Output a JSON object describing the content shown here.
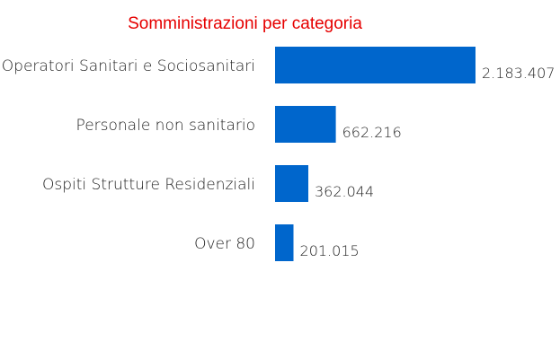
{
  "chart_data": {
    "type": "bar",
    "orientation": "horizontal",
    "title": "Somministrazioni per categoria",
    "categories": [
      "Operatori Sanitari e Sociosanitari",
      "Personale non sanitario",
      "Ospiti Strutture Residenziali",
      "Over 80"
    ],
    "values": [
      2183407,
      662216,
      362044,
      201015
    ],
    "value_labels": [
      "2.183.407",
      "662.216",
      "362.044",
      "201.015"
    ],
    "xlabel": "",
    "ylabel": "",
    "grid": false,
    "legend": "none",
    "colors": {
      "bar": "#0066cc",
      "title": "#e60000",
      "text": "#222222"
    }
  }
}
